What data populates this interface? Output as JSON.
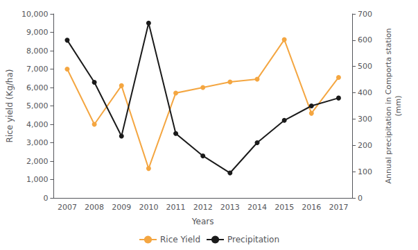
{
  "chart_data": {
    "type": "line",
    "xlabel": "Years",
    "ylabel": "Rice yield (Kg/ha)",
    "y2label": "Annual precipitation in Comporta station\n(mm)",
    "categories": [
      "2007",
      "2008",
      "2009",
      "2010",
      "2011",
      "2012",
      "2013",
      "2014",
      "2015",
      "2016",
      "2017"
    ],
    "series": [
      {
        "name": "Rice Yield",
        "color": "#f4a641",
        "marker": "circle",
        "values": [
          7000,
          4000,
          6100,
          1600,
          5700,
          6000,
          6300,
          6450,
          8600,
          4600,
          6550
        ]
      },
      {
        "name": "Precipitation",
        "color": "#1a1a1a",
        "marker": "circle",
        "axis": "y2",
        "values": [
          600,
          440,
          235,
          665,
          245,
          160,
          95,
          210,
          295,
          350,
          380
        ]
      }
    ],
    "ylim": [
      0,
      10000
    ],
    "yticks": [
      0,
      1000,
      2000,
      3000,
      4000,
      5000,
      6000,
      7000,
      8000,
      9000,
      10000
    ],
    "y2lim": [
      0,
      700
    ],
    "y2ticks": [
      0,
      100,
      200,
      300,
      400,
      500,
      600,
      700
    ],
    "grid": false,
    "legend": "bottom"
  }
}
